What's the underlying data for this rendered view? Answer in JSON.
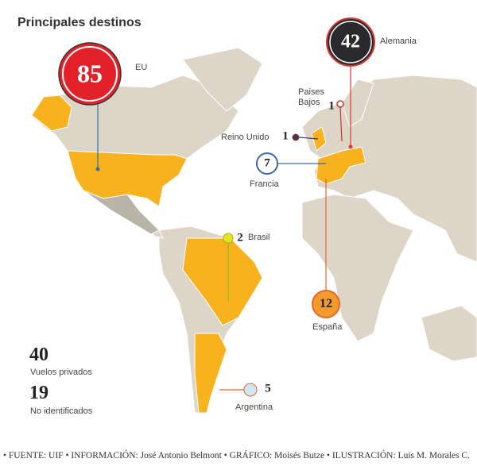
{
  "title": "Principales destinos",
  "destinations": [
    {
      "value": 85,
      "label": "EU"
    },
    {
      "value": 42,
      "label": "Alemania"
    },
    {
      "value": 1,
      "label": "Paises Bajos"
    },
    {
      "value": 1,
      "label": "Reino Unido"
    },
    {
      "value": 7,
      "label": "Francia"
    },
    {
      "value": 12,
      "label": "España"
    },
    {
      "value": 2,
      "label": "Brasil"
    },
    {
      "value": 5,
      "label": "Argentina"
    }
  ],
  "stats": [
    {
      "value": 40,
      "label": "Vuelos privados"
    },
    {
      "value": 19,
      "label": "No identificados"
    }
  ],
  "footer": "• FUENTE: UIF • INFORMACIÓN: José Antonio Belmont • GRÁFICO: Moisés Butze • ILUSTRACIÓN: Luis M. Morales C."
}
